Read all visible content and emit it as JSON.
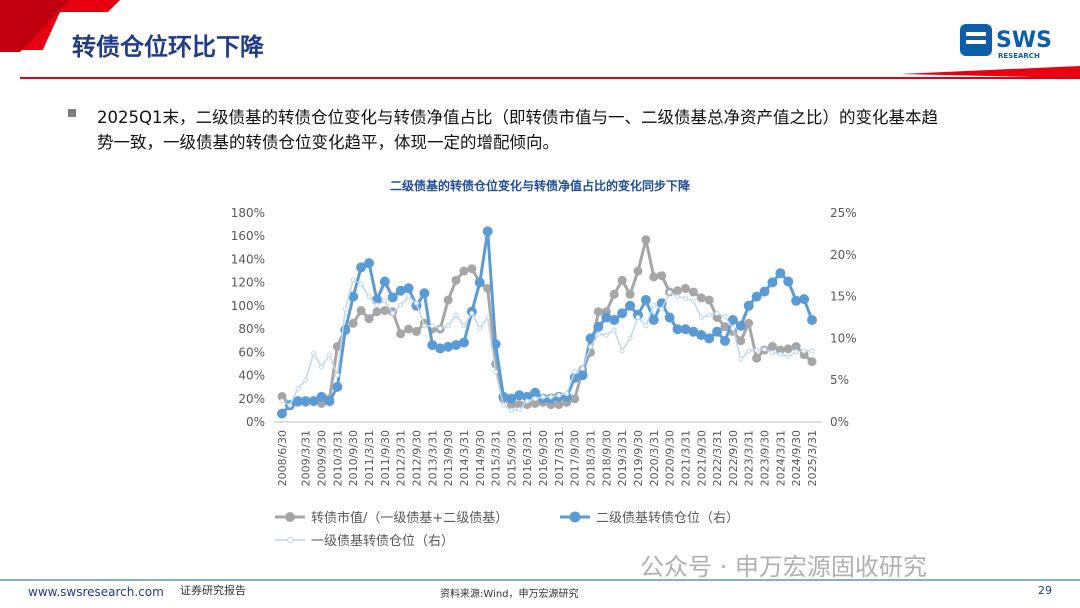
{
  "header": {
    "title": "转债仓位环比下降",
    "logo": "SWS",
    "logo_sub": "RESEARCH"
  },
  "bullet": [
    "2025Q1末，二级债基的转债仓位变化与转债净值占比（即转债市值与一、二级债基总净资产值之比）的变化基本趋",
    "势一致，一级债基的转债仓位变化趋平，体现一定的增配倾向。"
  ],
  "chart_data": {
    "type": "line",
    "title": "二级债基的转债仓位变化与转债净值占比的变化同步下降",
    "categories": [
      "2008/6/30",
      null,
      null,
      "2009/3/31",
      null,
      "2009/9/30",
      null,
      "2010/3/31",
      null,
      "2010/9/30",
      null,
      "2011/3/31",
      null,
      "2011/9/30",
      null,
      "2012/3/31",
      null,
      "2012/9/30",
      null,
      "2013/3/31",
      null,
      "2013/9/30",
      null,
      "2014/3/31",
      null,
      "2014/9/30",
      null,
      "2015/3/31",
      null,
      "2015/9/30",
      null,
      "2016/3/31",
      null,
      "2016/9/30",
      null,
      "2017/3/31",
      null,
      "2017/9/30",
      null,
      "2018/3/31",
      null,
      "2018/9/30",
      null,
      "2019/3/31",
      null,
      "2019/9/30",
      null,
      "2020/3/31",
      null,
      "2020/9/30",
      null,
      "2021/3/31",
      null,
      "2021/9/30",
      null,
      "2022/3/31",
      null,
      "2022/9/30",
      null,
      "2023/3/31",
      null,
      "2023/9/30",
      null,
      "2024/3/31",
      null,
      "2024/9/30",
      null,
      "2025/3/31"
    ],
    "series": [
      {
        "name": "转债市值/（一级债基+二级债基）",
        "color": "#a6a6a6",
        "axis": "y",
        "values": [
          22,
          15,
          17,
          17,
          18,
          16,
          20,
          65,
          80,
          85,
          96,
          89,
          95,
          96,
          95,
          76,
          80,
          78,
          85,
          80,
          80,
          105,
          122,
          130,
          132,
          120,
          115,
          50,
          20,
          15,
          15,
          15,
          16,
          17,
          15,
          15,
          17,
          20,
          45,
          60,
          95,
          95,
          110,
          122,
          110,
          130,
          157,
          125,
          126,
          112,
          113,
          115,
          112,
          107,
          105,
          90,
          82,
          78,
          70,
          85,
          55,
          62,
          65,
          62,
          63,
          65,
          58,
          52
        ]
      },
      {
        "name": "二级债基转债仓位（右）",
        "color": "#5b9bd5",
        "axis": "y2",
        "values": [
          1,
          2,
          2.5,
          2.5,
          2.5,
          3,
          2.5,
          4.2,
          11,
          15,
          18.5,
          19,
          14.6,
          16.8,
          14.9,
          15.7,
          16,
          13.9,
          15.4,
          9.2,
          8.8,
          9,
          9.2,
          9.5,
          13.2,
          16.7,
          22.8,
          9.3,
          3,
          2.8,
          3.2,
          3,
          3.5,
          2.8,
          2.8,
          3,
          3,
          5.3,
          5.6,
          10,
          11.4,
          12.5,
          12.2,
          13,
          13.9,
          12.8,
          14.6,
          12.2,
          14.2,
          12.5,
          11.1,
          11.1,
          10.8,
          10.4,
          10,
          10.8,
          9.7,
          12.2,
          11.5,
          13.9,
          15,
          15.6,
          16.7,
          17.8,
          16.8,
          14.5,
          14.7,
          12.2
        ]
      },
      {
        "name": "一级债基转债仓位（右）",
        "color": "#bdd7ee",
        "axis": "y2",
        "values": [
          2.5,
          2,
          4,
          5,
          8.2,
          6.6,
          8,
          5.6,
          13.5,
          17,
          16.5,
          15,
          14,
          14.5,
          13,
          14,
          15,
          14.2,
          11.5,
          11.5,
          11.2,
          11.5,
          12.8,
          11.5,
          13,
          11.2,
          12.5,
          6,
          2,
          1.4,
          1.5,
          2.5,
          2.8,
          3,
          3,
          3.2,
          3.4,
          6,
          6.4,
          9,
          10.5,
          10.4,
          11,
          8.5,
          10,
          12.5,
          11.5,
          14,
          13.5,
          15.5,
          15,
          14.8,
          14.5,
          12.5,
          12.8,
          13,
          12.6,
          11.2,
          7.5,
          8.5,
          8.6,
          8.7,
          8.3,
          8.1,
          7.8,
          8.4,
          8.5,
          8.5
        ]
      }
    ],
    "ylim": [
      0,
      180
    ],
    "yticks": [
      {
        "value": 0,
        "label": "0%"
      },
      {
        "value": 20,
        "label": "20%"
      },
      {
        "value": 40,
        "label": "40%"
      },
      {
        "value": 60,
        "label": "60%"
      },
      {
        "value": 80,
        "label": "80%"
      },
      {
        "value": 100,
        "label": "100%"
      },
      {
        "value": 120,
        "label": "120%"
      },
      {
        "value": 140,
        "label": "140%"
      },
      {
        "value": 160,
        "label": "160%"
      },
      {
        "value": 180,
        "label": "180%"
      }
    ],
    "y2lim": [
      0,
      25
    ],
    "y2ticks": [
      {
        "value": 0,
        "label": "0%"
      },
      {
        "value": 5,
        "label": "5%"
      },
      {
        "value": 10,
        "label": "10%"
      },
      {
        "value": 15,
        "label": "15%"
      },
      {
        "value": 20,
        "label": "20%"
      },
      {
        "value": 25,
        "label": "25%"
      }
    ],
    "grid": false,
    "legend": "bottom"
  },
  "footer": {
    "website": "www.swsresearch.com",
    "report": "证券研究报告",
    "source": "资料来源:Wind，申万宏源研究",
    "page": "29",
    "watermark": "公众号 · 申万宏源固收研究"
  }
}
